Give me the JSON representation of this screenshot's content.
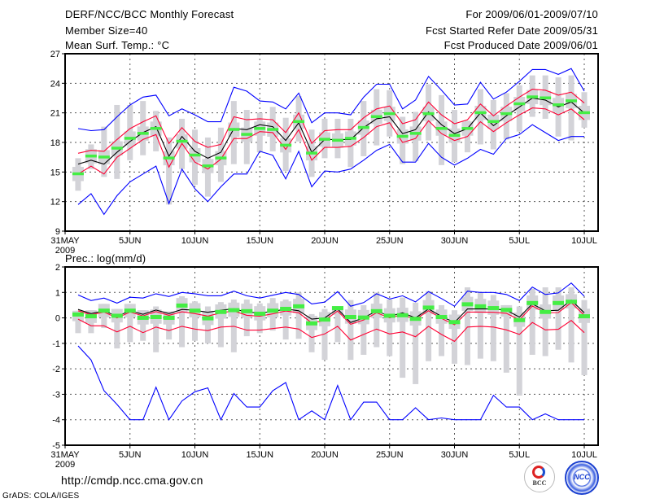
{
  "header": {
    "title": "DERF/NCC/BCC Monthly Forecast",
    "member_size": "Member Size=40",
    "variable1": "Mean Surf. Temp.: °C",
    "period": "For 2009/06/01-2009/07/10",
    "started": "Fcst Started Refer Date 2009/05/31",
    "produced": "Fcst Produced Date 2009/06/01"
  },
  "footer": {
    "url": "http://cmdp.ncc.cma.gov.cn",
    "credit": "GrADS: COLA/IGES",
    "logo_bcc": "BCC",
    "logo_ncc": "NCC"
  },
  "colors": {
    "max_min": "#0000ff",
    "spread": "#ff0033",
    "mean": "#000000",
    "median": "#44ee44",
    "range": "#d3d3d8"
  },
  "chart_data": [
    {
      "type": "line",
      "title": "Mean Surf. Temp.: °C",
      "xlabel": "",
      "ylabel": "°C",
      "x_days": 40,
      "xticks": [
        {
          "day": 0,
          "label": "31MAY"
        },
        {
          "day": 5,
          "label": "5JUN"
        },
        {
          "day": 10,
          "label": "10JUN"
        },
        {
          "day": 15,
          "label": "15JUN"
        },
        {
          "day": 20,
          "label": "20JUN"
        },
        {
          "day": 25,
          "label": "25JUN"
        },
        {
          "day": 30,
          "label": "30JUN"
        },
        {
          "day": 35,
          "label": "5JUL"
        },
        {
          "day": 40,
          "label": "10JUL"
        }
      ],
      "year_label": "2009",
      "yticks": [
        9,
        12,
        15,
        18,
        21,
        24,
        27
      ],
      "ylim": [
        9,
        27
      ],
      "grid": true,
      "series": {
        "max": [
          19.4,
          19.2,
          19.3,
          20.6,
          21.8,
          22.6,
          22.8,
          20.7,
          21.4,
          20.8,
          20.1,
          20.1,
          23.6,
          23.2,
          22.2,
          22.1,
          21.4,
          23.0,
          20.0,
          21.0,
          21.0,
          20.8,
          22.6,
          23.9,
          23.9,
          21.4,
          22.3,
          24.7,
          23.3,
          21.8,
          21.9,
          24.1,
          22.4,
          23.1,
          24.2,
          25.4,
          25.4,
          24.9,
          25.5,
          23.2
        ],
        "min": [
          11.7,
          12.8,
          10.7,
          12.6,
          14.0,
          14.8,
          15.6,
          11.8,
          15.3,
          13.3,
          12.0,
          13.5,
          14.8,
          14.8,
          17.1,
          16.7,
          14.3,
          17.1,
          13.5,
          15.1,
          15.0,
          15.3,
          16.2,
          17.2,
          17.8,
          16.0,
          16.0,
          17.9,
          16.5,
          15.7,
          16.4,
          17.3,
          16.8,
          18.4,
          18.8,
          19.8,
          19.0,
          18.2,
          18.6,
          18.6
        ],
        "mean": [
          15.8,
          16.2,
          15.8,
          17.0,
          18.1,
          19.0,
          19.6,
          16.6,
          18.6,
          17.1,
          16.4,
          17.0,
          19.4,
          19.3,
          19.8,
          19.6,
          18.2,
          20.0,
          17.0,
          18.3,
          18.3,
          18.3,
          19.5,
          20.4,
          20.6,
          18.9,
          19.3,
          21.1,
          19.8,
          18.9,
          19.4,
          21.0,
          19.7,
          20.7,
          21.6,
          22.5,
          22.3,
          21.6,
          22.1,
          21.0
        ],
        "upper": [
          16.9,
          17.2,
          17.1,
          18.3,
          19.4,
          20.1,
          20.7,
          17.9,
          19.5,
          18.1,
          17.5,
          17.8,
          20.6,
          20.3,
          20.4,
          20.3,
          19.0,
          21.0,
          17.9,
          19.2,
          19.3,
          19.3,
          20.5,
          21.4,
          21.7,
          19.9,
          20.3,
          22.1,
          20.8,
          19.9,
          20.3,
          21.9,
          20.7,
          21.7,
          22.6,
          23.4,
          23.3,
          22.8,
          23.1,
          22.0
        ],
        "lower": [
          14.8,
          15.6,
          14.8,
          16.5,
          17.4,
          18.3,
          18.8,
          15.5,
          17.9,
          16.0,
          15.3,
          16.3,
          18.4,
          18.4,
          19.1,
          19.0,
          17.3,
          19.3,
          16.2,
          17.5,
          17.5,
          17.6,
          18.5,
          19.6,
          20.0,
          18.0,
          18.4,
          20.2,
          18.9,
          18.2,
          18.6,
          20.1,
          19.1,
          20.0,
          20.8,
          21.5,
          21.4,
          20.8,
          21.4,
          20.3
        ],
        "median": [
          14.8,
          16.6,
          16.5,
          17.4,
          18.4,
          18.9,
          19.4,
          16.4,
          18.1,
          16.7,
          15.6,
          16.4,
          19.3,
          18.8,
          19.4,
          19.3,
          17.7,
          20.1,
          16.9,
          18.3,
          18.2,
          18.4,
          19.5,
          20.6,
          20.9,
          18.6,
          18.9,
          20.9,
          19.4,
          18.7,
          19.4,
          21.0,
          20.1,
          20.9,
          21.9,
          22.6,
          22.5,
          21.8,
          22.2,
          21.0
        ],
        "range_high": [
          16.4,
          17.8,
          19.6,
          21.8,
          21.8,
          22.2,
          21.2,
          18.5,
          20.4,
          19.3,
          18.5,
          19.5,
          22.2,
          21.3,
          21.0,
          21.6,
          20.5,
          22.7,
          19.3,
          20.4,
          20.4,
          20.4,
          22.2,
          23.4,
          23.3,
          20.6,
          21.1,
          23.9,
          22.8,
          21.3,
          20.2,
          23.4,
          22.3,
          23.0,
          23.8,
          24.8,
          24.8,
          24.6,
          24.8,
          23.1
        ],
        "range_low": [
          13.1,
          15.3,
          14.5,
          14.3,
          16.2,
          16.7,
          17.1,
          11.7,
          15.3,
          13.7,
          12.5,
          14.0,
          15.8,
          15.8,
          17.0,
          17.1,
          15.1,
          18.1,
          14.5,
          16.4,
          16.4,
          15.5,
          16.6,
          17.7,
          18.6,
          15.8,
          16.1,
          18.2,
          15.7,
          16.0,
          17.0,
          17.8,
          17.3,
          18.3,
          19.1,
          20.6,
          20.4,
          18.6,
          18.2,
          19.5
        ]
      }
    },
    {
      "type": "line",
      "title": "Prec.: log(mm/d)",
      "xlabel": "",
      "ylabel": "log(mm/d)",
      "x_days": 40,
      "xticks": [
        {
          "day": 0,
          "label": "31MAY"
        },
        {
          "day": 5,
          "label": "5JUN"
        },
        {
          "day": 10,
          "label": "10JUN"
        },
        {
          "day": 15,
          "label": "15JUN"
        },
        {
          "day": 20,
          "label": "20JUN"
        },
        {
          "day": 25,
          "label": "25JUN"
        },
        {
          "day": 30,
          "label": "30JUN"
        },
        {
          "day": 35,
          "label": "5JUL"
        },
        {
          "day": 40,
          "label": "10JUL"
        }
      ],
      "year_label": "2009",
      "yticks": [
        -5,
        -4,
        -3,
        -2,
        -1,
        0,
        1,
        2
      ],
      "ylim": [
        -5,
        2
      ],
      "grid": true,
      "series": {
        "max": [
          0.9,
          0.68,
          0.78,
          0.58,
          0.81,
          0.78,
          0.95,
          0.84,
          1.0,
          0.95,
          0.87,
          0.87,
          1.05,
          0.87,
          0.78,
          0.89,
          1.0,
          0.92,
          0.55,
          0.62,
          1.03,
          0.46,
          0.6,
          0.95,
          0.74,
          0.87,
          0.63,
          1.03,
          0.76,
          0.46,
          1.05,
          1.0,
          1.0,
          0.92,
          0.68,
          1.21,
          0.92,
          0.98,
          1.37,
          0.85
        ],
        "min": [
          -1.1,
          -1.65,
          -2.86,
          -3.4,
          -4,
          -4,
          -2.72,
          -4,
          -3.26,
          -2.9,
          -2.75,
          -4,
          -2.97,
          -3.5,
          -3.5,
          -2.86,
          -2.54,
          -4,
          -3.65,
          -4,
          -2.65,
          -4,
          -3.31,
          -3.31,
          -4,
          -4,
          -3.53,
          -4,
          -3.93,
          -4,
          -4,
          -4,
          -3.04,
          -3.5,
          -3.5,
          -4,
          -3.77,
          -4,
          -4,
          -4
        ],
        "mean": [
          0.33,
          0.17,
          0.28,
          0.06,
          0.28,
          0.14,
          0.31,
          0.17,
          0.33,
          0.3,
          0.22,
          0.3,
          0.36,
          0.22,
          0.2,
          0.25,
          0.35,
          0.28,
          -0.05,
          0.0,
          0.35,
          -0.18,
          0.0,
          0.28,
          0.06,
          0.2,
          0.0,
          0.35,
          0.06,
          -0.18,
          0.35,
          0.35,
          0.35,
          0.3,
          0.03,
          0.55,
          0.28,
          0.3,
          0.7,
          0.2
        ],
        "upper": [
          0.28,
          0.12,
          0.23,
          0.0,
          0.23,
          0.08,
          0.25,
          0.1,
          0.24,
          0.17,
          0.07,
          0.2,
          0.27,
          0.1,
          0.07,
          0.16,
          0.27,
          0.2,
          -0.2,
          -0.1,
          0.27,
          -0.25,
          -0.08,
          0.2,
          0.0,
          0.13,
          -0.06,
          0.28,
          -0.02,
          -0.27,
          0.23,
          0.23,
          0.22,
          0.18,
          -0.08,
          0.47,
          0.2,
          0.21,
          0.6,
          0.1
        ],
        "lower": [
          -0.05,
          -0.31,
          -0.31,
          -0.55,
          -0.33,
          -0.58,
          -0.36,
          -0.5,
          -0.33,
          -0.44,
          -0.5,
          -0.36,
          -0.33,
          -0.48,
          -0.48,
          -0.42,
          -0.36,
          -0.44,
          -0.77,
          -0.63,
          -0.33,
          -0.87,
          -0.65,
          -0.44,
          -0.63,
          -0.55,
          -0.74,
          -0.33,
          -0.65,
          -0.92,
          -0.36,
          -0.33,
          -0.36,
          -0.47,
          -0.65,
          -0.18,
          -0.47,
          -0.45,
          -0.1,
          -0.58
        ],
        "median": [
          0.15,
          0.08,
          0.3,
          0.1,
          0.3,
          0.02,
          0.05,
          0.02,
          0.5,
          0.3,
          0.0,
          0.25,
          0.32,
          0.28,
          0.18,
          0.3,
          0.37,
          0.47,
          -0.2,
          -0.05,
          0.4,
          0.05,
          0.03,
          0.28,
          0.1,
          0.12,
          -0.02,
          0.42,
          0.05,
          -0.15,
          0.55,
          0.47,
          0.4,
          0.33,
          -0.07,
          0.6,
          0.25,
          0.6,
          0.65,
          0.08
        ],
        "range_high": [
          0.28,
          0.3,
          0.55,
          0.35,
          0.55,
          0.3,
          0.45,
          0.25,
          0.85,
          0.65,
          0.45,
          0.62,
          0.72,
          0.72,
          0.57,
          0.78,
          0.72,
          1.0,
          0.15,
          0.35,
          0.45,
          0.7,
          0.5,
          1.0,
          0.72,
          0.8,
          0.6,
          1.05,
          0.5,
          0.3,
          1.2,
          1.0,
          0.9,
          0.5,
          0.45,
          1.15,
          1.2,
          1.2,
          1.2,
          0.7
        ],
        "range_low": [
          -0.6,
          -0.6,
          -0.4,
          -1.2,
          -0.95,
          -0.9,
          -1.35,
          -0.85,
          -1.15,
          -0.9,
          -1.0,
          -1.15,
          -1.35,
          -0.72,
          -0.6,
          -0.5,
          -0.85,
          -0.82,
          -1.35,
          -1.65,
          -0.95,
          -1.65,
          -1.45,
          -1.15,
          -1.5,
          -2.35,
          -2.6,
          -1.7,
          -1.5,
          -1.8,
          -1.85,
          -1.6,
          -1.7,
          -2.15,
          -3.05,
          -1.45,
          -1.5,
          -1.25,
          -1.75,
          -2.25
        ]
      }
    }
  ]
}
